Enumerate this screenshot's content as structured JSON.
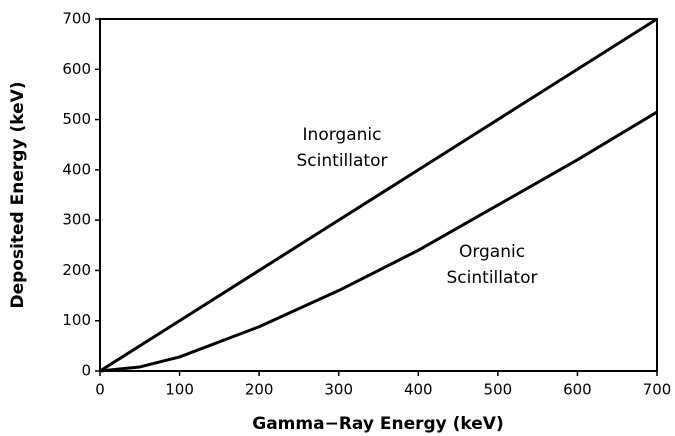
{
  "chart_data": {
    "type": "line",
    "x_label": "Gamma−Ray Energy (keV)",
    "y_label": "Deposited Energy (keV)",
    "x": [
      0,
      50,
      100,
      200,
      300,
      400,
      500,
      600,
      700
    ],
    "series": [
      {
        "name": "Inorganic Scintillator",
        "color": "#000000",
        "values": [
          0,
          50,
          100,
          200,
          300,
          400,
          500,
          600,
          700
        ]
      },
      {
        "name": "Organic Scintillator",
        "color": "#000000",
        "values": [
          0,
          8,
          28,
          88,
          160,
          240,
          330,
          420,
          515
        ]
      }
    ],
    "annotations": [
      [
        "Inorganic",
        "Scintillator"
      ],
      [
        "Organic",
        "Scintillator"
      ]
    ],
    "xlim": [
      0,
      700
    ],
    "ylim": [
      0,
      700
    ],
    "xticks": [
      0,
      100,
      200,
      300,
      400,
      500,
      600,
      700
    ],
    "yticks": [
      0,
      100,
      200,
      300,
      400,
      500,
      600,
      700
    ],
    "grid": false
  }
}
